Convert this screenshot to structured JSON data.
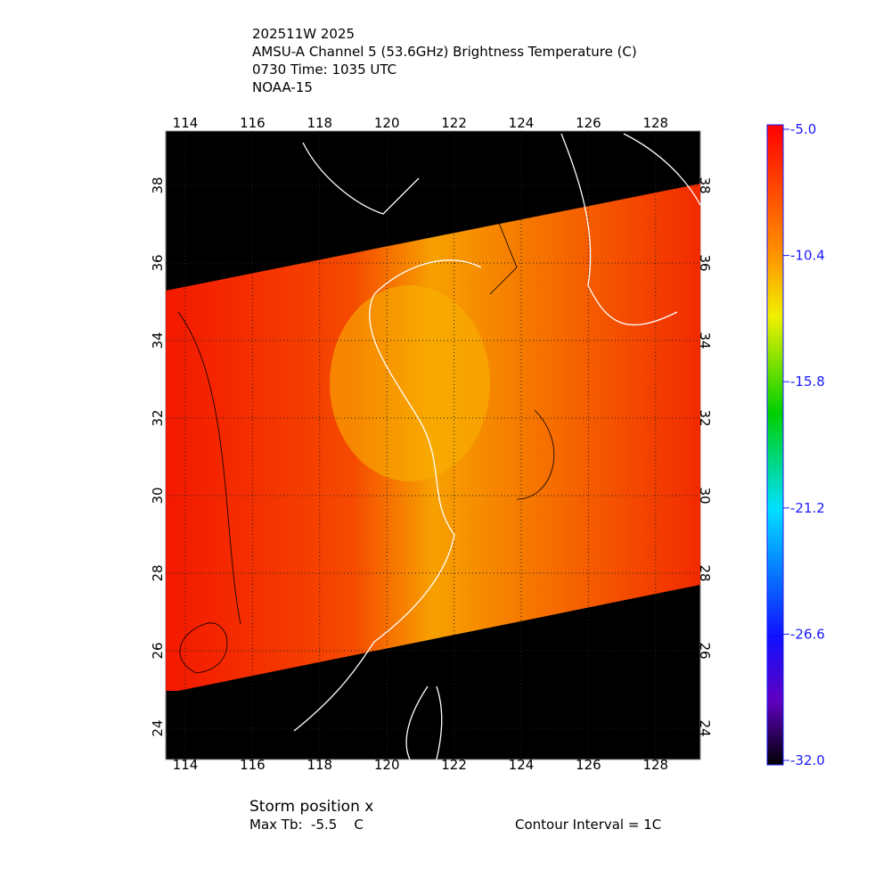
{
  "header": {
    "lines": [
      "202511W 2025",
      "AMSU-A Channel 5 (53.6GHz) Brightness Temperature (C)",
      "0730 Time: 1035 UTC",
      "NOAA-15"
    ]
  },
  "map": {
    "lon_ticks": [
      "114",
      "116",
      "118",
      "120",
      "122",
      "124",
      "126",
      "128"
    ],
    "lat_ticks": [
      "24",
      "26",
      "28",
      "30",
      "32",
      "34",
      "36",
      "38"
    ]
  },
  "colorbar": {
    "ticks": [
      "-5.0",
      "-10.4",
      "-15.8",
      "-21.2",
      "-26.6",
      "-32.0"
    ]
  },
  "footer": {
    "storm": "Storm position x",
    "max_tb": "Max Tb:  -5.5    C",
    "contour": "Contour Interval = 1C"
  }
}
